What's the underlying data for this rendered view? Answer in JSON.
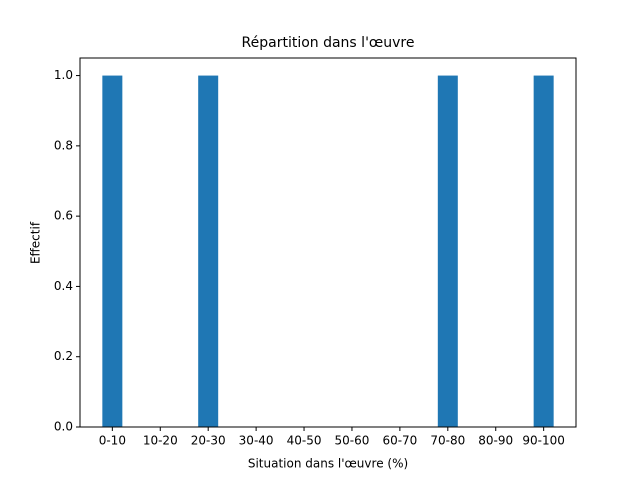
{
  "chart_data": {
    "type": "bar",
    "title": "Répartition dans l'œuvre",
    "x_label": "Situation dans l'œuvre (%)",
    "y_label": "Effectif",
    "categories": [
      "0-10",
      "10-20",
      "20-30",
      "30-40",
      "40-50",
      "50-60",
      "60-70",
      "70-80",
      "80-90",
      "90-100"
    ],
    "values": [
      1,
      0,
      1,
      0,
      0,
      0,
      0,
      1,
      0,
      1
    ],
    "color": "#1f77b4",
    "ylim": [
      0,
      1.05
    ],
    "yticks": [
      {
        "value": 0,
        "label": "0.0"
      },
      0.2,
      0.4,
      0.6,
      0.8,
      {
        "value": 1,
        "label": "1.0"
      }
    ],
    "grid": false
  }
}
